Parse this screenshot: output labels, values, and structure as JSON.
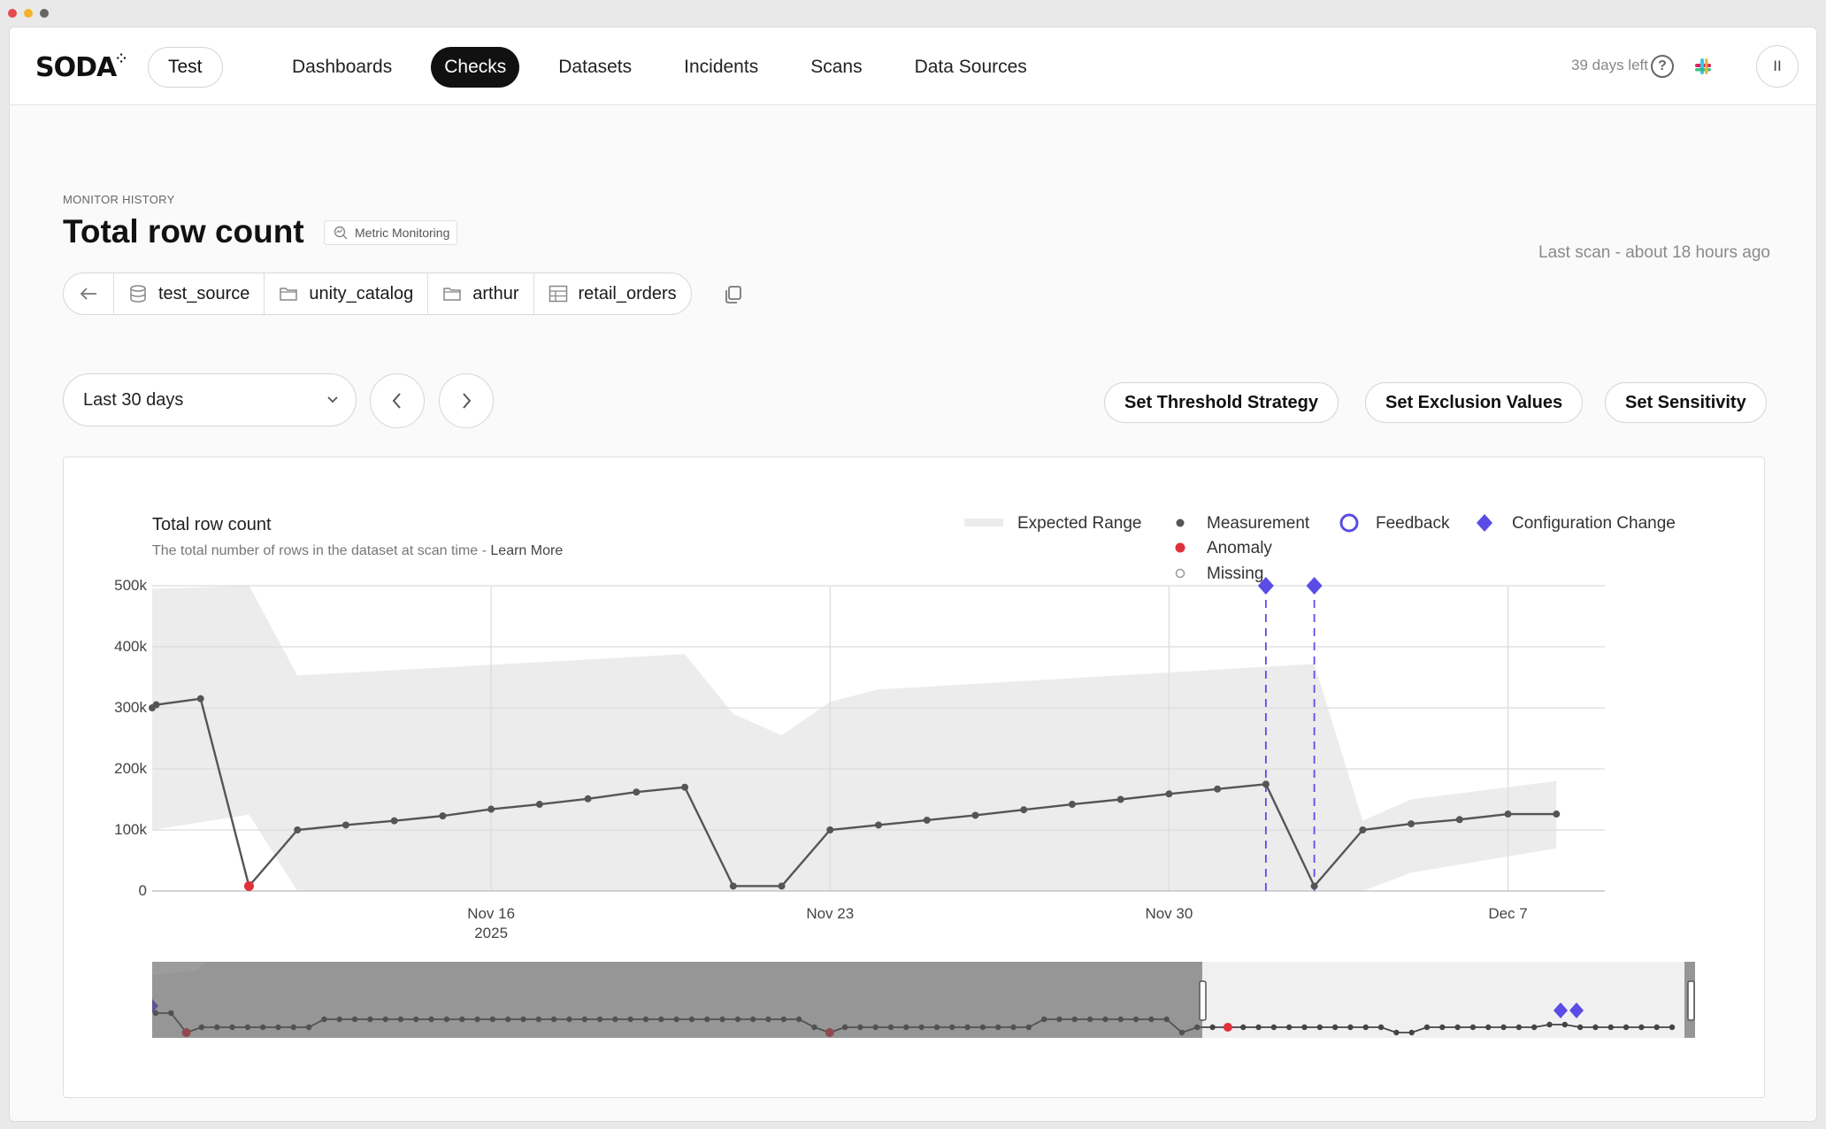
{
  "nav": {
    "logo": "SODA",
    "environment": "Test",
    "items": [
      "Dashboards",
      "Checks",
      "Datasets",
      "Incidents",
      "Scans",
      "Data Sources"
    ],
    "active": "Checks",
    "trial": "39 days left",
    "avatar": "II"
  },
  "header": {
    "eyebrow": "MONITOR HISTORY",
    "title": "Total row count",
    "badge": "Metric Monitoring",
    "last_scan": "Last scan - about 18 hours ago",
    "breadcrumb": [
      "test_source",
      "unity_catalog",
      "arthur",
      "retail_orders"
    ]
  },
  "controls": {
    "range": "Last 30 days",
    "set_threshold": "Set Threshold Strategy",
    "set_exclusion": "Set Exclusion Values",
    "set_sensitivity": "Set Sensitivity"
  },
  "chart_data": {
    "type": "line",
    "title": "Total row count",
    "subtitle": "The total number of rows in the dataset at scan time - ",
    "subtitle_link": "Learn More",
    "legend": [
      "Expected Range",
      "Measurement",
      "Feedback",
      "Configuration Change",
      "Anomaly",
      "Missing"
    ],
    "y_ticks": [
      "500k",
      "400k",
      "300k",
      "200k",
      "100k",
      "0"
    ],
    "ylim": [
      0,
      500000
    ],
    "x_ticks": [
      {
        "label": "Nov 16",
        "sub": "2025",
        "date": "2025-11-16"
      },
      {
        "label": "Nov 23",
        "sub": "",
        "date": "2025-11-23"
      },
      {
        "label": "Nov 30",
        "sub": "",
        "date": "2025-11-30"
      },
      {
        "label": "Dec 7",
        "sub": "",
        "date": "2025-12-07"
      }
    ],
    "xlim": [
      "2025-11-09 10:00",
      "2025-12-09 10:00"
    ],
    "measurements": [
      {
        "date": "2025-11-09 10:00",
        "value": 300000
      },
      {
        "date": "2025-11-09 12:00",
        "value": 305000
      },
      {
        "date": "2025-11-10 10:00",
        "value": 315000
      },
      {
        "date": "2025-11-11 10:00",
        "value": 8000,
        "anomaly": true
      },
      {
        "date": "2025-11-12 10:00",
        "value": 100000
      },
      {
        "date": "2025-11-13 10:00",
        "value": 108000
      },
      {
        "date": "2025-11-14 10:00",
        "value": 115000
      },
      {
        "date": "2025-11-15 10:00",
        "value": 123000
      },
      {
        "date": "2025-11-16 10:00",
        "value": 134000
      },
      {
        "date": "2025-11-17 10:00",
        "value": 142000
      },
      {
        "date": "2025-11-18 10:00",
        "value": 151000
      },
      {
        "date": "2025-11-19 10:00",
        "value": 162000
      },
      {
        "date": "2025-11-20 10:00",
        "value": 170000
      },
      {
        "date": "2025-11-21 10:00",
        "value": 8000
      },
      {
        "date": "2025-11-22 10:00",
        "value": 8000
      },
      {
        "date": "2025-11-23 10:00",
        "value": 100000
      },
      {
        "date": "2025-11-24 10:00",
        "value": 108000
      },
      {
        "date": "2025-11-25 10:00",
        "value": 116000
      },
      {
        "date": "2025-11-26 10:00",
        "value": 124000
      },
      {
        "date": "2025-11-27 10:00",
        "value": 133000
      },
      {
        "date": "2025-11-28 10:00",
        "value": 142000
      },
      {
        "date": "2025-11-29 10:00",
        "value": 150000
      },
      {
        "date": "2025-11-30 10:00",
        "value": 159000
      },
      {
        "date": "2025-12-01 10:00",
        "value": 167000
      },
      {
        "date": "2025-12-02 10:00",
        "value": 175000
      },
      {
        "date": "2025-12-03 10:00",
        "value": 8000
      },
      {
        "date": "2025-12-04 10:00",
        "value": 100000
      },
      {
        "date": "2025-12-05 10:00",
        "value": 110000
      },
      {
        "date": "2025-12-06 10:00",
        "value": 117000
      },
      {
        "date": "2025-12-07 10:00",
        "value": 126000
      },
      {
        "date": "2025-12-08 10:00",
        "value": 126000
      }
    ],
    "expected_range": [
      {
        "date": "2025-11-09 10:00",
        "upper": 495000,
        "lower": 100000
      },
      {
        "date": "2025-11-11 10:00",
        "upper": 500000,
        "lower": 125000
      },
      {
        "date": "2025-11-12 10:00",
        "upper": 353000,
        "lower": 0
      },
      {
        "date": "2025-11-20 10:00",
        "upper": 388000,
        "lower": 0
      },
      {
        "date": "2025-11-21 10:00",
        "upper": 290000,
        "lower": 0
      },
      {
        "date": "2025-11-22 10:00",
        "upper": 255000,
        "lower": 0
      },
      {
        "date": "2025-11-23 10:00",
        "upper": 310000,
        "lower": 0
      },
      {
        "date": "2025-11-24 10:00",
        "upper": 330000,
        "lower": 0
      },
      {
        "date": "2025-12-03 10:00",
        "upper": 372000,
        "lower": 0
      },
      {
        "date": "2025-12-04 10:00",
        "upper": 115000,
        "lower": 0
      },
      {
        "date": "2025-12-05 10:00",
        "upper": 150000,
        "lower": 30000
      },
      {
        "date": "2025-12-08 10:00",
        "upper": 180000,
        "lower": 70000
      }
    ],
    "config_changes": [
      "2025-12-02 10:00",
      "2025-12-03 10:00"
    ],
    "grid": true,
    "legend_position": "top-right",
    "colors": {
      "measurement": "#555555",
      "anomaly": "#e0303a",
      "feedback": "#5b4ce8",
      "config_change": "#5b4ce8",
      "expected_range": "#ececec"
    }
  }
}
